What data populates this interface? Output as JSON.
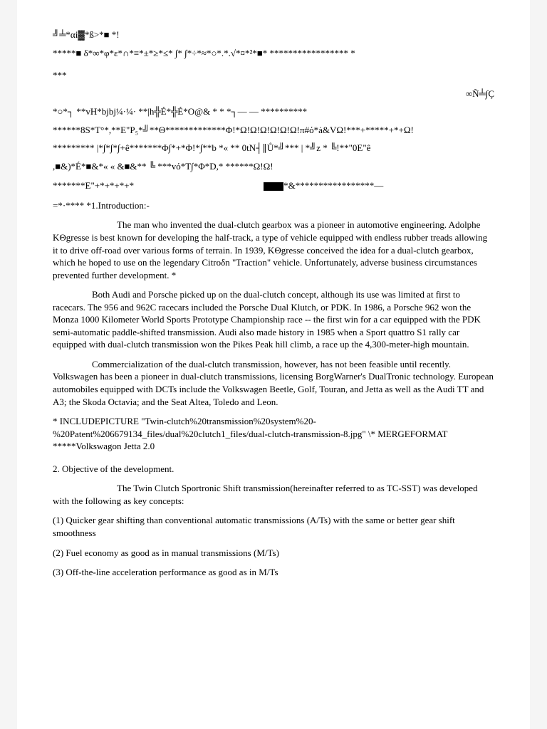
{
  "garbled": {
    "line1": "╝╧*αi▓*ß>*■ *!",
    "line2": "*****■ δ*∞*φ*ε*∩*≡*±*≥*≤* ∫* ∫*÷*≈*○*.*.√*¤*²*■* ***************** *",
    "line3": "***",
    "line_right": "∞Ñ╧∫Ç",
    "line4": "*○*┐ **vH*bjbj¼·¼· **|h╬É*╬É*O@& * * *┐— — **********",
    "line5": "******8S*T°*,**E\"P₅*╝**Θ*************Φ!*Ω!Ω!Ω!Ω!Ω!Ω!π#ό*ȧ&VΩ!***+*****+*+Ω!",
    "line6": "********* |*∫*∫*∫+ê*******Φ∫*+*Φ!*∫**b *« **   0tN┤∥Ů*╝*** | *╝z * ╚!**\"0E\"ê",
    "line7": ",■&)*É*■&*« « &■&** ╚ ***vό*T∫*Φ*D,* ******Ω!Ω!",
    "line8a": "*******E\"+*+*+*+*",
    "line8b": "*&*****************—",
    "line9": "=*·**** *1.Introduction:-"
  },
  "intro_para": "The man who invented the dual-clutch gearbox was a pioneer in automotive engineering. Adolphe KΘgresse is best known for developing the half-track, a type of vehicle equipped with endless rubber treads allowing it to drive off-road over various forms of terrain. In 1939, KΘgresse conceived the idea for a dual-clutch gearbox, which he hoped to use on the legendary Citroδn \"Traction\" vehicle. Unfortunately, adverse business circumstances prevented further development. *",
  "para2": "Both Audi and Porsche picked up on the dual-clutch concept, although its use was limited at first to racecars. The 956 and 962C racecars included the Porsche Dual Klutch, or PDK. In 1986, a Porsche 962 won the Monza 1000 Kilometer World Sports Prototype Championship race -- the first win for a car equipped with the PDK semi-automatic paddle-shifted transmission. Audi also made history in 1985 when a Sport quattro S1 rally car equipped with dual-clutch transmission won the Pikes Peak hill climb, a race up the 4,300-meter-high mountain.",
  "para3": "Commercialization of the dual-clutch transmission, however, has not been feasible until recently. Volkswagen has been a pioneer in dual-clutch transmissions, licensing BorgWarner's DualTronic technology. European automobiles equipped with DCTs include the Volkswagen Beetle, Golf, Touran, and Jetta as well as the Audi TT and A3; the Skoda Octavia; and the Seat Altea, Toledo and Leon.",
  "include_line": "* INCLUDEPICTURE \"Twin-clutch%20transmission%20system%20-%20Patent%206679134_files/dual%20clutch1_files/dual-clutch-transmission-8.jpg\" \\* MERGEFORMAT *****Volkswagon Jetta 2.0",
  "objective_head": "2. Objective of the development.",
  "objective_intro": "The Twin Clutch Sportronic Shift transmission(hereinafter referred to as TC-SST) was developed with the following as key concepts:",
  "obj1": "(1) Quicker gear shifting than conventional automatic transmissions (A/Ts) with the same or better gear shift smoothness",
  "obj2": "(2) Fuel economy as good as in manual transmissions (M/Ts)",
  "obj3": "(3) Off-the-line acceleration performance as good as in M/Ts"
}
